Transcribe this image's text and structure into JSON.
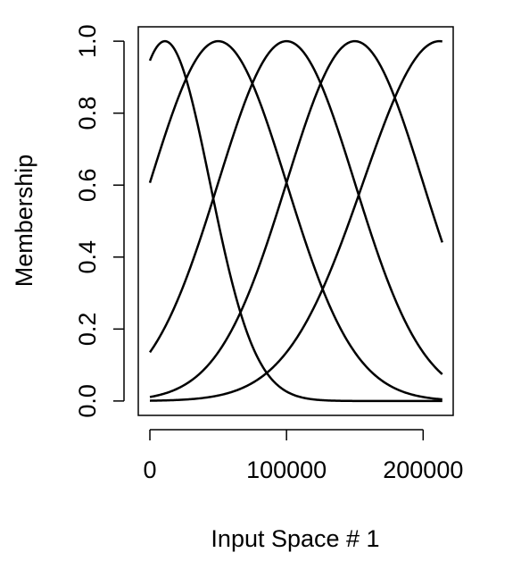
{
  "chart_data": {
    "type": "line",
    "xlabel": "Input Space # 1",
    "ylabel": "Membership",
    "xlim": [
      -8500,
      222000
    ],
    "ylim": [
      -0.04,
      1.04
    ],
    "xticks": [
      0,
      100000,
      200000
    ],
    "xtick_labels": [
      "0",
      "100000",
      "200000"
    ],
    "yticks": [
      0,
      0.2,
      0.4,
      0.6,
      0.8,
      1
    ],
    "ytick_labels": [
      "0.0",
      "0.2",
      "0.4",
      "0.6",
      "0.8",
      "1.0"
    ],
    "grid": false,
    "x_range": [
      0,
      214000
    ],
    "series": [
      {
        "center": 11000,
        "sigma": 33000,
        "color": "#000000"
      },
      {
        "center": 50000,
        "sigma": 50000,
        "color": "#000000"
      },
      {
        "center": 100000,
        "sigma": 50000,
        "color": "#000000"
      },
      {
        "center": 150000,
        "sigma": 50000,
        "color": "#000000"
      },
      {
        "center": 212000,
        "sigma": 56000,
        "color": "#000000"
      }
    ]
  }
}
